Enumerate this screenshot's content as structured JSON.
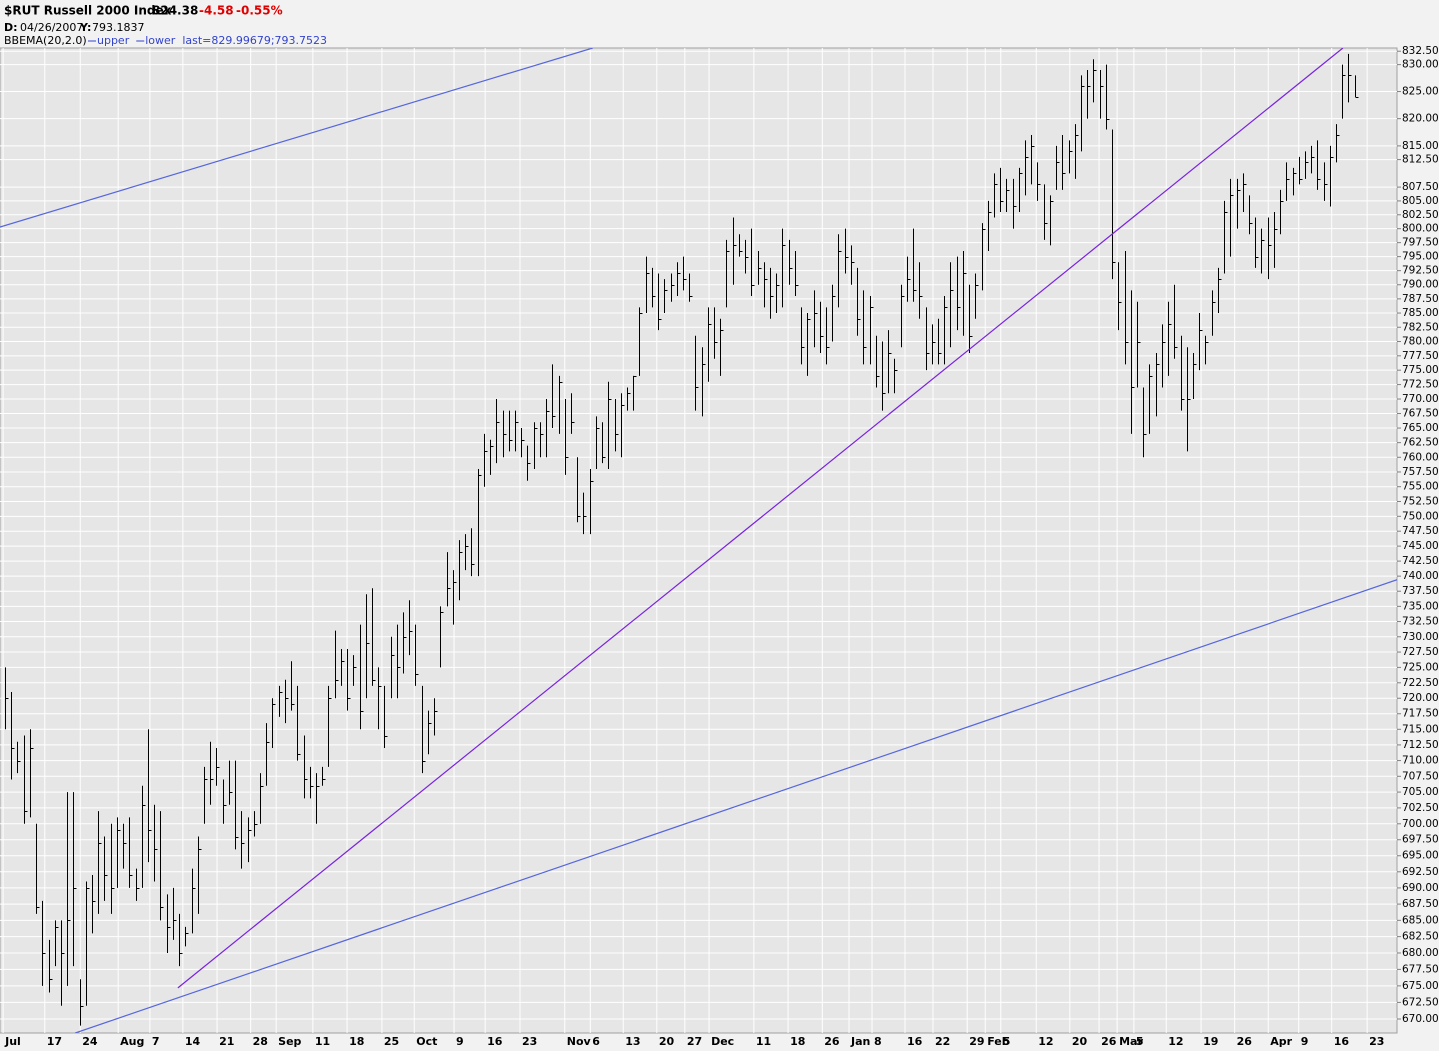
{
  "chart_data": {
    "type": "ohlc",
    "title": "$RUT Russell 2000 Index",
    "header": {
      "last": "824.38",
      "change": "-4.58",
      "change_pct": "-0.55%",
      "date_label": "D:",
      "date": "04/26/2007",
      "y_label": "Y:",
      "y_value": "793.1837"
    },
    "indicator": {
      "name": "BBEMA(20,2.0)",
      "lines": [
        {
          "name": "upper",
          "color": "#3344cc"
        },
        {
          "name": "lower",
          "color": "#3344cc"
        }
      ],
      "last": "last=829.99679;793.7523"
    },
    "bar_color": "#000000",
    "log_scale": true,
    "grid": true,
    "xlim": [
      -0.8,
      223.8
    ],
    "ylim": [
      667.9,
      833.1
    ],
    "high": [
      725,
      721,
      713,
      714,
      715,
      700,
      688,
      682,
      685,
      685,
      705,
      705,
      676,
      691,
      692,
      702,
      698,
      700,
      701,
      700,
      701,
      693,
      706,
      715,
      703,
      702,
      689,
      690,
      686,
      684,
      693,
      698,
      709,
      713,
      712,
      707,
      710,
      710,
      702,
      701,
      702,
      708,
      716,
      720,
      722,
      723,
      726,
      722,
      714,
      709,
      708,
      709,
      722,
      731,
      728,
      728,
      727,
      732,
      737,
      738,
      725,
      722,
      730,
      732,
      734,
      736,
      732,
      722,
      718,
      720,
      735,
      744,
      741,
      746,
      747,
      748,
      758,
      764,
      763,
      770,
      768,
      768,
      768,
      765,
      762,
      766,
      766,
      770,
      776,
      774,
      770,
      771,
      760,
      754,
      758,
      767,
      766,
      773,
      770,
      771,
      772,
      774,
      786,
      795,
      793,
      792,
      791,
      792,
      794,
      795,
      792,
      781,
      779,
      786,
      786,
      784,
      798,
      802,
      799,
      798,
      800,
      796,
      794,
      793,
      792,
      800,
      798,
      796,
      786,
      785,
      789,
      787,
      786,
      790,
      799,
      800,
      797,
      793,
      789,
      788,
      781,
      780,
      782,
      777,
      790,
      795,
      800,
      794,
      786,
      783,
      784,
      788,
      794,
      795,
      796,
      790,
      792,
      801,
      805,
      810,
      811,
      809,
      809,
      811,
      816,
      817,
      812,
      808,
      806,
      815,
      817,
      816,
      819,
      828,
      829,
      831,
      829,
      830,
      818,
      794,
      796,
      789,
      787,
      772,
      776,
      778,
      783,
      787,
      790,
      781,
      779,
      778,
      785,
      781,
      789,
      793,
      805,
      809,
      809,
      810,
      806,
      802,
      800,
      802,
      803,
      807,
      812,
      811,
      813,
      814,
      815,
      816,
      812,
      815,
      819,
      830,
      832,
      828
    ],
    "low": [
      715,
      707,
      708,
      700,
      701,
      686,
      675,
      674,
      678,
      672,
      675,
      678,
      669,
      672,
      683,
      686,
      688,
      686,
      690,
      693,
      690,
      688,
      690,
      694,
      691,
      685,
      680,
      682,
      678,
      681,
      683,
      686,
      700,
      703,
      706,
      700,
      703,
      696,
      693,
      694,
      698,
      700,
      706,
      712,
      717,
      716,
      718,
      710,
      704,
      704,
      700,
      706,
      709,
      720,
      722,
      718,
      722,
      715,
      720,
      722,
      715,
      712,
      720,
      720,
      724,
      727,
      722,
      708,
      711,
      714,
      725,
      735,
      732,
      736,
      741,
      740,
      740,
      755,
      757,
      759,
      760,
      761,
      761,
      760,
      756,
      758,
      760,
      760,
      765,
      764,
      757,
      764,
      749,
      747,
      747,
      758,
      759,
      758,
      761,
      760,
      768,
      768,
      774,
      785,
      786,
      782,
      785,
      787,
      788,
      789,
      787,
      768,
      767,
      773,
      777,
      774,
      786,
      790,
      795,
      792,
      788,
      790,
      786,
      784,
      785,
      786,
      790,
      788,
      776,
      774,
      779,
      778,
      776,
      780,
      786,
      792,
      790,
      781,
      776,
      776,
      772,
      768,
      771,
      771,
      779,
      787,
      787,
      784,
      775,
      776,
      776,
      776,
      779,
      782,
      781,
      778,
      784,
      789,
      796,
      802,
      803,
      803,
      800,
      803,
      806,
      808,
      805,
      798,
      797,
      807,
      807,
      810,
      809,
      814,
      820,
      823,
      820,
      818,
      791,
      782,
      776,
      764,
      772,
      760,
      764,
      767,
      772,
      774,
      777,
      768,
      761,
      770,
      775,
      776,
      781,
      785,
      792,
      795,
      800,
      803,
      799,
      793,
      792,
      791,
      793,
      799,
      805,
      806,
      808,
      809,
      810,
      807,
      805,
      804,
      812,
      820,
      823,
      824
    ],
    "close": [
      720,
      712,
      710,
      702,
      712,
      687,
      680,
      676,
      684,
      680,
      685,
      690,
      672,
      690,
      688,
      697,
      692,
      690,
      699,
      697,
      692,
      690,
      703,
      699,
      696,
      687,
      684,
      685,
      680,
      683,
      690,
      696,
      707,
      707,
      709,
      703,
      705,
      698,
      697,
      699,
      700,
      706,
      713,
      719,
      721,
      720,
      719,
      711,
      707,
      706,
      706,
      707,
      720,
      723,
      726,
      720,
      725,
      718,
      729,
      723,
      722,
      714,
      727,
      725,
      730,
      731,
      724,
      710,
      716,
      718,
      734,
      738,
      739,
      744,
      745,
      742,
      757,
      761,
      762,
      766,
      764,
      763,
      766,
      763,
      759,
      765,
      764,
      768,
      767,
      773,
      760,
      766,
      750,
      750,
      756,
      765,
      760,
      770,
      764,
      769,
      771,
      774,
      785,
      792,
      788,
      784,
      789,
      790,
      792,
      791,
      788,
      772,
      776,
      783,
      780,
      782,
      796,
      797,
      796,
      795,
      790,
      793,
      791,
      788,
      790,
      797,
      793,
      790,
      779,
      784,
      785,
      781,
      779,
      788,
      796,
      795,
      794,
      784,
      779,
      786,
      774,
      771,
      778,
      775,
      788,
      791,
      789,
      788,
      778,
      780,
      778,
      786,
      789,
      786,
      792,
      781,
      790,
      800,
      803,
      808,
      805,
      807,
      804,
      810,
      813,
      815,
      808,
      801,
      805,
      812,
      810,
      814,
      817,
      826,
      826,
      829,
      826,
      820,
      794,
      787,
      780,
      772,
      780,
      764,
      774,
      776,
      780,
      783,
      779,
      770,
      770,
      776,
      782,
      780,
      787,
      791,
      803,
      806,
      807,
      808,
      801,
      795,
      798,
      797,
      800,
      805,
      809,
      810,
      809,
      812,
      813,
      809,
      808,
      813,
      817,
      828,
      828,
      824
    ],
    "trendlines": [
      {
        "color": "#5566dd",
        "x": [
          -0.8,
          94.5
        ],
        "y": [
          800.3,
          833.1
        ]
      },
      {
        "color": "#5566dd",
        "x": [
          11.3,
          223.8
        ],
        "y": [
          667.9,
          739.4
        ]
      },
      {
        "color": "#7a22e0",
        "x": [
          27.8,
          215.1
        ],
        "y": [
          674.7,
          833.1
        ]
      }
    ],
    "xticks": [
      {
        "value": -0.3,
        "label": "Jul"
      },
      {
        "value": 6.4,
        "label": "17"
      },
      {
        "value": 12.1,
        "label": "24"
      },
      {
        "value": 18.2,
        "label": "Aug"
      },
      {
        "value": 23.3,
        "label": "7"
      },
      {
        "value": 28.6,
        "label": "14"
      },
      {
        "value": 34.1,
        "label": "21"
      },
      {
        "value": 39.5,
        "label": "28"
      },
      {
        "value": 43.6,
        "label": "Sep"
      },
      {
        "value": 49.5,
        "label": "11"
      },
      {
        "value": 55.0,
        "label": "18"
      },
      {
        "value": 60.6,
        "label": "25"
      },
      {
        "value": 65.8,
        "label": "Oct"
      },
      {
        "value": 72.2,
        "label": "9"
      },
      {
        "value": 77.2,
        "label": "16"
      },
      {
        "value": 82.8,
        "label": "23"
      },
      {
        "value": 90.0,
        "label": "Nov"
      },
      {
        "value": 94.1,
        "label": "6"
      },
      {
        "value": 99.4,
        "label": "13"
      },
      {
        "value": 104.8,
        "label": "20"
      },
      {
        "value": 109.3,
        "label": "27"
      },
      {
        "value": 113.2,
        "label": "Dec"
      },
      {
        "value": 120.4,
        "label": "11"
      },
      {
        "value": 125.9,
        "label": "18"
      },
      {
        "value": 131.4,
        "label": "26"
      },
      {
        "value": 135.7,
        "label": "Jan"
      },
      {
        "value": 139.4,
        "label": "8"
      },
      {
        "value": 144.7,
        "label": "16"
      },
      {
        "value": 149.2,
        "label": "22"
      },
      {
        "value": 154.7,
        "label": "29"
      },
      {
        "value": 157.6,
        "label": "Feb"
      },
      {
        "value": 160.1,
        "label": "5"
      },
      {
        "value": 165.8,
        "label": "12"
      },
      {
        "value": 171.2,
        "label": "20"
      },
      {
        "value": 175.9,
        "label": "26"
      },
      {
        "value": 178.8,
        "label": "Mar"
      },
      {
        "value": 181.5,
        "label": "5"
      },
      {
        "value": 186.7,
        "label": "12"
      },
      {
        "value": 192.3,
        "label": "19"
      },
      {
        "value": 197.7,
        "label": "26"
      },
      {
        "value": 203.1,
        "label": "Apr"
      },
      {
        "value": 208.0,
        "label": "9"
      },
      {
        "value": 213.3,
        "label": "16"
      },
      {
        "value": 219.0,
        "label": "23"
      }
    ],
    "yticks": [
      {
        "value": 832.5,
        "label": "832.50"
      },
      {
        "value": 830,
        "label": "830.00"
      },
      {
        "value": 825,
        "label": "825.00"
      },
      {
        "value": 820,
        "label": "820.00"
      },
      {
        "value": 815,
        "label": "815.00"
      },
      {
        "value": 812.5,
        "label": "812.50"
      },
      {
        "value": 807.5,
        "label": "807.50"
      },
      {
        "value": 805,
        "label": "805.00"
      },
      {
        "value": 802.5,
        "label": "802.50"
      },
      {
        "value": 800,
        "label": "800.00"
      },
      {
        "value": 797.5,
        "label": "797.50"
      },
      {
        "value": 795,
        "label": "795.00"
      },
      {
        "value": 792.5,
        "label": "792.50"
      },
      {
        "value": 790,
        "label": "790.00"
      },
      {
        "value": 787.5,
        "label": "787.50"
      },
      {
        "value": 785,
        "label": "785.00"
      },
      {
        "value": 782.5,
        "label": "782.50"
      },
      {
        "value": 780,
        "label": "780.00"
      },
      {
        "value": 777.5,
        "label": "777.50"
      },
      {
        "value": 775,
        "label": "775.00"
      },
      {
        "value": 772.5,
        "label": "772.50"
      },
      {
        "value": 770,
        "label": "770.00"
      },
      {
        "value": 767.5,
        "label": "767.50"
      },
      {
        "value": 765,
        "label": "765.00"
      },
      {
        "value": 762.5,
        "label": "762.50"
      },
      {
        "value": 760,
        "label": "760.00"
      },
      {
        "value": 757.5,
        "label": "757.50"
      },
      {
        "value": 755,
        "label": "755.00"
      },
      {
        "value": 752.5,
        "label": "752.50"
      },
      {
        "value": 750,
        "label": "750.00"
      },
      {
        "value": 747.5,
        "label": "747.50"
      },
      {
        "value": 745,
        "label": "745.00"
      },
      {
        "value": 742.5,
        "label": "742.50"
      },
      {
        "value": 740,
        "label": "740.00"
      },
      {
        "value": 737.5,
        "label": "737.50"
      },
      {
        "value": 735,
        "label": "735.00"
      },
      {
        "value": 732.5,
        "label": "732.50"
      },
      {
        "value": 730,
        "label": "730.00"
      },
      {
        "value": 727.5,
        "label": "727.50"
      },
      {
        "value": 725,
        "label": "725.00"
      },
      {
        "value": 722.5,
        "label": "722.50"
      },
      {
        "value": 720,
        "label": "720.00"
      },
      {
        "value": 717.5,
        "label": "717.50"
      },
      {
        "value": 715,
        "label": "715.00"
      },
      {
        "value": 712.5,
        "label": "712.50"
      },
      {
        "value": 710,
        "label": "710.00"
      },
      {
        "value": 707.5,
        "label": "707.50"
      },
      {
        "value": 705,
        "label": "705.00"
      },
      {
        "value": 702.5,
        "label": "702.50"
      },
      {
        "value": 700,
        "label": "700.00"
      },
      {
        "value": 697.5,
        "label": "697.50"
      },
      {
        "value": 695,
        "label": "695.00"
      },
      {
        "value": 692.5,
        "label": "692.50"
      },
      {
        "value": 690,
        "label": "690.00"
      },
      {
        "value": 687.5,
        "label": "687.50"
      },
      {
        "value": 685,
        "label": "685.00"
      },
      {
        "value": 682.5,
        "label": "682.50"
      },
      {
        "value": 680,
        "label": "680.00"
      },
      {
        "value": 677.5,
        "label": "677.50"
      },
      {
        "value": 675,
        "label": "675.00"
      },
      {
        "value": 672.5,
        "label": "672.50"
      },
      {
        "value": 670,
        "label": "670.00"
      }
    ]
  }
}
